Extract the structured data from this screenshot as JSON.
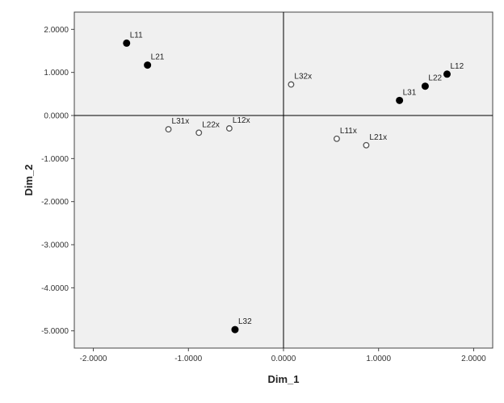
{
  "chart_data": {
    "type": "scatter",
    "xlabel": "Dim_1",
    "ylabel": "Dim_2",
    "xlim": [
      -2.2,
      2.2
    ],
    "ylim": [
      -5.4,
      2.4
    ],
    "xticks": [
      -2.0,
      -1.0,
      0.0,
      1.0,
      2.0
    ],
    "yticks": [
      2.0,
      1.0,
      0.0,
      -1.0,
      -2.0,
      -3.0,
      -4.0,
      -5.0
    ],
    "xtick_labels": [
      "-2.0000",
      "-1.0000",
      "0.0000",
      "1.0000",
      "2.0000"
    ],
    "ytick_labels": [
      "2.0000",
      "1.0000",
      "0.0000",
      "-1.0000",
      "-2.0000",
      "-3.0000",
      "-4.0000",
      "-5.0000"
    ],
    "reference_lines": {
      "x": 0.0,
      "y": 0.0
    },
    "grid": false,
    "colors": {
      "plot_background": "#f0f0f0",
      "marker": "#000000",
      "reference_line": "#000000"
    },
    "series": [
      {
        "marker": "filled-circle",
        "points": [
          {
            "label": "L11",
            "x": -1.65,
            "y": 1.68
          },
          {
            "label": "L21",
            "x": -1.43,
            "y": 1.17
          },
          {
            "label": "L12",
            "x": 1.72,
            "y": 0.96
          },
          {
            "label": "L22",
            "x": 1.49,
            "y": 0.68
          },
          {
            "label": "L31",
            "x": 1.22,
            "y": 0.35
          },
          {
            "label": "L32",
            "x": -0.51,
            "y": -4.97
          }
        ]
      },
      {
        "marker": "open-circle",
        "points": [
          {
            "label": "L32x",
            "x": 0.08,
            "y": 0.72
          },
          {
            "label": "L31x",
            "x": -1.21,
            "y": -0.32
          },
          {
            "label": "L22x",
            "x": -0.89,
            "y": -0.4
          },
          {
            "label": "L12x",
            "x": -0.57,
            "y": -0.3
          },
          {
            "label": "L11x",
            "x": 0.56,
            "y": -0.54
          },
          {
            "label": "L21x",
            "x": 0.87,
            "y": -0.69
          }
        ]
      }
    ]
  }
}
